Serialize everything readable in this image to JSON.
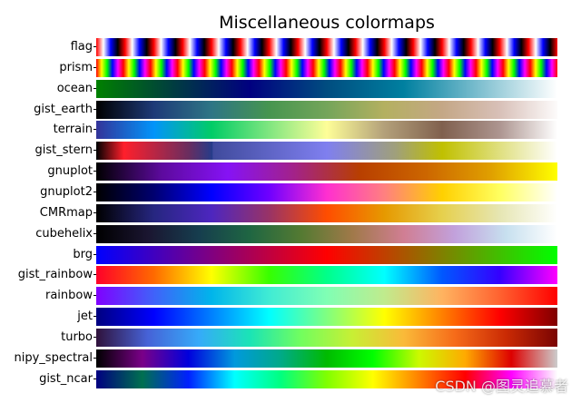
{
  "chart_data": {
    "type": "heatmap",
    "title": "Miscellaneous colormaps",
    "xlabel": "",
    "ylabel": "",
    "grid": false,
    "gradient_range": [
      0,
      1
    ],
    "colormaps": [
      {
        "name": "flag",
        "kind": "repeating",
        "cycles": 16,
        "stops": [
          "#ff0000",
          "#ffffff",
          "#0000ff",
          "#000000",
          "#ff0000"
        ]
      },
      {
        "name": "prism",
        "kind": "repeating",
        "cycles": 17,
        "stops": [
          "#ff0000",
          "#ffff00",
          "#00ff00",
          "#0000ff",
          "#ff00ff",
          "#ff0000"
        ]
      },
      {
        "name": "ocean",
        "kind": "gradient",
        "stops": [
          "#008000",
          "#003d40",
          "#000080",
          "#004d80",
          "#0080a0",
          "#80c0d0",
          "#ffffff"
        ]
      },
      {
        "name": "gist_earth",
        "kind": "gradient",
        "stops": [
          "#000000",
          "#1e3a78",
          "#2e7585",
          "#46954f",
          "#74a55a",
          "#b4b060",
          "#c4a786",
          "#d8c0b8",
          "#fdfbfb"
        ]
      },
      {
        "name": "terrain",
        "kind": "gradient",
        "stops": [
          "#333399",
          "#0294fa",
          "#01cc66",
          "#80e680",
          "#fefe98",
          "#b3a07a",
          "#80604e",
          "#ad9590",
          "#ffffff"
        ]
      },
      {
        "name": "gist_stern",
        "kind": "hard",
        "stops": [
          [
            0.0,
            "#000000"
          ],
          [
            0.06,
            "#ff1f2b"
          ],
          [
            0.2,
            "#6a2d5f"
          ],
          [
            0.252,
            "#253c8a"
          ],
          [
            0.253,
            "#3f4a9c"
          ],
          [
            0.5,
            "#7f7fef"
          ],
          [
            0.65,
            "#a0a07a"
          ],
          [
            0.75,
            "#c0c000"
          ],
          [
            1.0,
            "#ffffff"
          ]
        ]
      },
      {
        "name": "gnuplot",
        "kind": "gradient",
        "stops": [
          "#000000",
          "#5d0a9e",
          "#8612f5",
          "#a32289",
          "#b83f00",
          "#cc6600",
          "#e0a000",
          "#ffff00"
        ]
      },
      {
        "name": "gnuplot2",
        "kind": "gradient",
        "stops": [
          "#000000",
          "#000070",
          "#0000ff",
          "#6f00ff",
          "#ff2fd0",
          "#ff8080",
          "#ffd000",
          "#ffff60",
          "#ffffff"
        ]
      },
      {
        "name": "CMRmap",
        "kind": "gradient",
        "stops": [
          "#000000",
          "#262680",
          "#4d26bf",
          "#993366",
          "#ff4d00",
          "#e69900",
          "#e6d04d",
          "#e6e6b3",
          "#ffffff"
        ]
      },
      {
        "name": "cubehelix",
        "kind": "gradient",
        "stops": [
          "#000000",
          "#1a1530",
          "#163d4e",
          "#1f6642",
          "#547a32",
          "#a07949",
          "#d07e93",
          "#c2a1dc",
          "#c7e0ef",
          "#ffffff"
        ]
      },
      {
        "name": "brg",
        "kind": "gradient",
        "stops": [
          "#0000ff",
          "#800080",
          "#ff0000",
          "#808000",
          "#00ff00"
        ]
      },
      {
        "name": "gist_rainbow",
        "kind": "gradient",
        "stops": [
          "#ff0029",
          "#ff6a00",
          "#ffff00",
          "#38ff00",
          "#00ff8a",
          "#00ffff",
          "#0058ff",
          "#3500ff",
          "#ff00ff"
        ]
      },
      {
        "name": "rainbow",
        "kind": "gradient",
        "stops": [
          "#8000ff",
          "#4062fa",
          "#00b5eb",
          "#40ecd4",
          "#80ffb4",
          "#c0eb8d",
          "#ffb360",
          "#ff6230",
          "#ff0000"
        ]
      },
      {
        "name": "jet",
        "kind": "gradient",
        "stops": [
          "#000080",
          "#0000ff",
          "#0080ff",
          "#00ffff",
          "#80ff80",
          "#ffff00",
          "#ff8000",
          "#ff0000",
          "#800000"
        ]
      },
      {
        "name": "turbo",
        "kind": "gradient",
        "stops": [
          "#30123b",
          "#4662d7",
          "#36aaf9",
          "#1ae4b6",
          "#72fe5e",
          "#c8ef34",
          "#faba39",
          "#f66b19",
          "#ca2a04",
          "#7a0403"
        ]
      },
      {
        "name": "nipy_spectral",
        "kind": "gradient",
        "stops": [
          "#000000",
          "#7a0088",
          "#0000dd",
          "#0099dd",
          "#00aa88",
          "#00bb00",
          "#00ff00",
          "#ccf900",
          "#ffaa00",
          "#dd0000",
          "#cccccc"
        ]
      },
      {
        "name": "gist_ncar",
        "kind": "gradient",
        "stops": [
          "#000080",
          "#007050",
          "#0020ff",
          "#00ffff",
          "#00ff80",
          "#80ff00",
          "#ffff00",
          "#ff8000",
          "#ff0000",
          "#ff00ff",
          "#fefefe"
        ]
      }
    ]
  },
  "watermark": "CSDN @图灵追慕者"
}
